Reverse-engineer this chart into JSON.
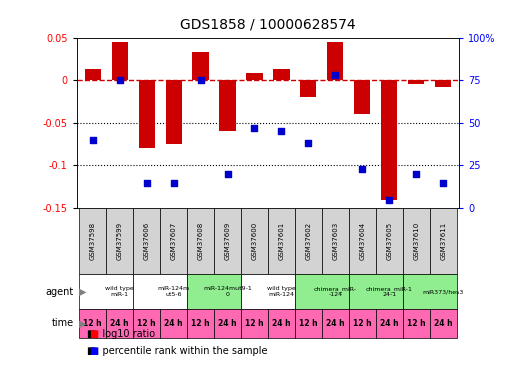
{
  "title": "GDS1858 / 10000628574",
  "samples": [
    "GSM37598",
    "GSM37599",
    "GSM37606",
    "GSM37607",
    "GSM37608",
    "GSM37609",
    "GSM37600",
    "GSM37601",
    "GSM37602",
    "GSM37603",
    "GSM37604",
    "GSM37605",
    "GSM37610",
    "GSM37611"
  ],
  "log10_ratio": [
    0.013,
    0.045,
    -0.08,
    -0.075,
    0.033,
    -0.06,
    0.008,
    0.013,
    -0.02,
    0.045,
    -0.04,
    -0.14,
    -0.005,
    -0.008
  ],
  "percentile_rank": [
    40,
    75,
    15,
    15,
    75,
    20,
    47,
    45,
    38,
    78,
    23,
    5,
    20,
    15
  ],
  "agents": [
    {
      "label": "wild type\nmiR-1",
      "start": 0,
      "end": 2,
      "color": "#ffffff"
    },
    {
      "label": "miR-124m\nut5-6",
      "start": 2,
      "end": 4,
      "color": "#ffffff"
    },
    {
      "label": "miR-124mut9-1\n0",
      "start": 4,
      "end": 6,
      "color": "#90ee90"
    },
    {
      "label": "wild type\nmiR-124",
      "start": 6,
      "end": 8,
      "color": "#ffffff"
    },
    {
      "label": "chimera_miR-\n-124",
      "start": 8,
      "end": 10,
      "color": "#90ee90"
    },
    {
      "label": "chimera_miR-1\n24-1",
      "start": 10,
      "end": 12,
      "color": "#90ee90"
    },
    {
      "label": "miR373/hes3",
      "start": 12,
      "end": 14,
      "color": "#90ee90"
    }
  ],
  "time_labels": [
    "12 h",
    "24 h",
    "12 h",
    "24 h",
    "12 h",
    "24 h",
    "12 h",
    "24 h",
    "12 h",
    "24 h",
    "12 h",
    "24 h",
    "12 h",
    "24 h"
  ],
  "bar_color": "#cc0000",
  "dot_color": "#0000cc",
  "ylim": [
    -0.15,
    0.05
  ],
  "y2lim": [
    0,
    100
  ],
  "yticks": [
    -0.15,
    -0.1,
    -0.05,
    0.0,
    0.05
  ],
  "ytick_labels": [
    "-0.15",
    "-0.1",
    "-0.05",
    "0",
    "0.05"
  ],
  "y2ticks": [
    0,
    25,
    50,
    75,
    100
  ],
  "y2tick_labels": [
    "0",
    "25",
    "50",
    "75",
    "100%"
  ],
  "dotted_lines": [
    -0.05,
    -0.1
  ],
  "dashed_zero_color": "#cc0000",
  "sample_bg": "#d3d3d3",
  "time_bg": "#ff69b4",
  "agent_label_white": "#ffffff",
  "agent_label_green": "#90ee90"
}
